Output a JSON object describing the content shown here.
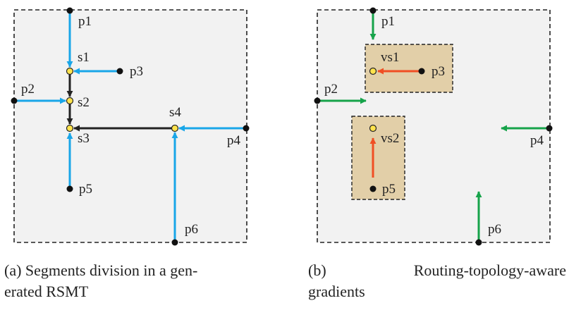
{
  "colors": {
    "panel_bg": "#f2f2f2",
    "border": "#222222",
    "blue_arrow": "#19a6e8",
    "black_arrow": "#222222",
    "green_arrow": "#16a34a",
    "red_arrow": "#f04e23",
    "box_fill": "#e2cfa8",
    "steiner_fill": "#ffe34d"
  },
  "panel_a": {
    "pins": [
      {
        "id": "p1",
        "label": "p1"
      },
      {
        "id": "p2",
        "label": "p2"
      },
      {
        "id": "p3",
        "label": "p3"
      },
      {
        "id": "p4",
        "label": "p4"
      },
      {
        "id": "p5",
        "label": "p5"
      },
      {
        "id": "p6",
        "label": "p6"
      }
    ],
    "steiner_points": [
      {
        "id": "s1",
        "label": "s1"
      },
      {
        "id": "s2",
        "label": "s2"
      },
      {
        "id": "s3",
        "label": "s3"
      },
      {
        "id": "s4",
        "label": "s4"
      }
    ],
    "caption_line1": "(a) Segments division in a gen-",
    "caption_line2": "erated RSMT"
  },
  "panel_b": {
    "pins": [
      {
        "id": "p1",
        "label": "p1"
      },
      {
        "id": "p2",
        "label": "p2"
      },
      {
        "id": "p3",
        "label": "p3"
      },
      {
        "id": "p4",
        "label": "p4"
      },
      {
        "id": "p5",
        "label": "p5"
      },
      {
        "id": "p6",
        "label": "p6"
      }
    ],
    "virtual_steiner_points": [
      {
        "id": "vs1",
        "label": "vs1"
      },
      {
        "id": "vs2",
        "label": "vs2"
      }
    ],
    "caption_word1": "(b)",
    "caption_word2": "Routing-topology-aware",
    "caption_line2": "gradients"
  }
}
